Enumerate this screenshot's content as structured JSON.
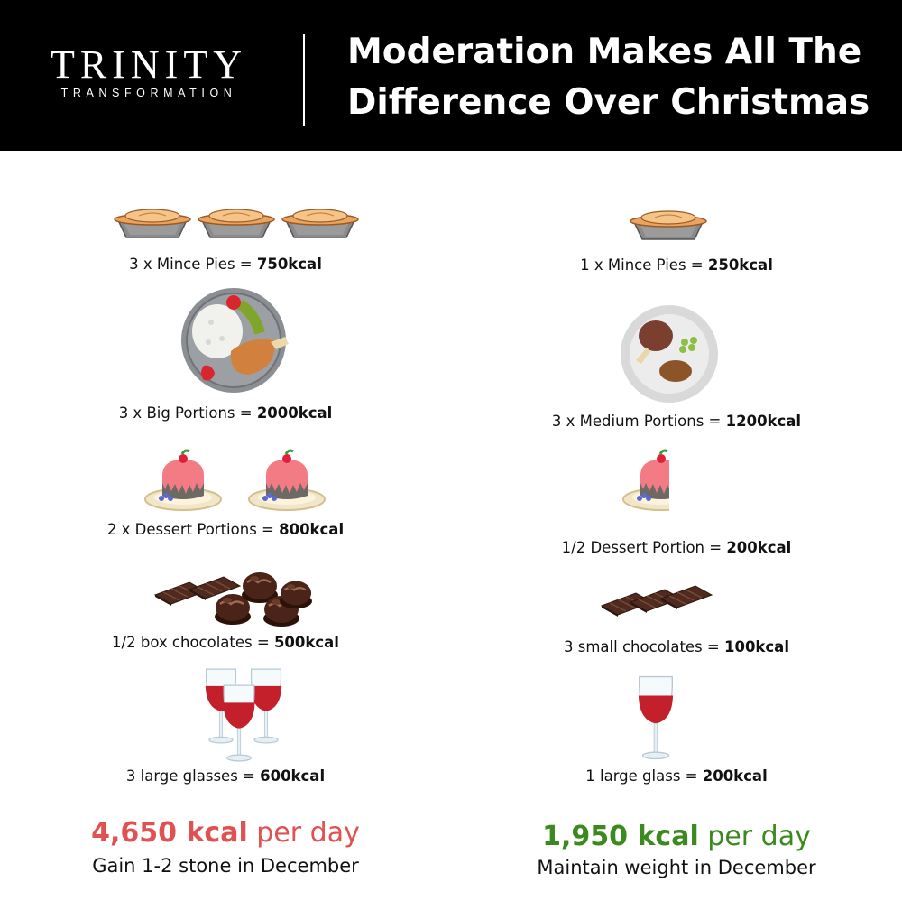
{
  "brand": {
    "name": "TRINITY",
    "tagline": "TRANSFORMATION"
  },
  "headline": {
    "line1": "Moderation Makes All The",
    "line2": "Difference Over Christmas"
  },
  "colors": {
    "excess": "#e05252",
    "moderate": "#3c8a1f",
    "header_bg": "#000000"
  },
  "left": {
    "items": [
      {
        "icon": "mince-pie-icon",
        "count": 3,
        "text": "3 x Mince Pies = ",
        "kcal": "750kcal"
      },
      {
        "icon": "dinner-plate-icon",
        "count": 1,
        "text": "3 x Big Portions = ",
        "kcal": "2000kcal"
      },
      {
        "icon": "dessert-cake-icon",
        "count": 2,
        "text": "2 x Dessert Portions = ",
        "kcal": "800kcal"
      },
      {
        "icon": "chocolates-icon",
        "count": 1,
        "text": "1/2 box chocolates = ",
        "kcal": "500kcal"
      },
      {
        "icon": "wine-glass-icon",
        "count": 3,
        "text": "3 large glasses = ",
        "kcal": "600kcal"
      }
    ],
    "total_value": "4,650 kcal",
    "total_unit": " per day",
    "verdict": "Gain 1-2 stone in December"
  },
  "right": {
    "items": [
      {
        "icon": "mince-pie-icon",
        "count": 1,
        "text": "1 x Mince Pies = ",
        "kcal": "250kcal"
      },
      {
        "icon": "dinner-plate-icon",
        "count": 1,
        "text": "3 x Medium Portions = ",
        "kcal": "1200kcal"
      },
      {
        "icon": "dessert-cake-icon",
        "count": 0.5,
        "text": "1/2 Dessert Portion = ",
        "kcal": "200kcal"
      },
      {
        "icon": "chocolates-icon",
        "count": 1,
        "text": "3 small chocolates = ",
        "kcal": "100kcal"
      },
      {
        "icon": "wine-glass-icon",
        "count": 1,
        "text": "1 large glass = ",
        "kcal": "200kcal"
      }
    ],
    "total_value": "1,950 kcal",
    "total_unit": " per day",
    "verdict": "Maintain weight in December"
  }
}
